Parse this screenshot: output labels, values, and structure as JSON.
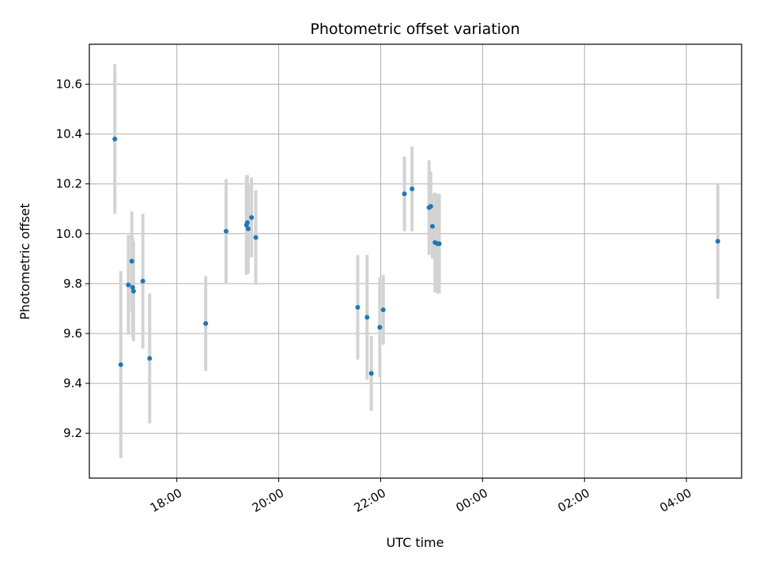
{
  "chart_data": {
    "type": "scatter",
    "title": "Photometric offset variation",
    "xlabel": "UTC time",
    "ylabel": "Photometric offset",
    "x_tick_labels": [
      "18:00",
      "20:00",
      "22:00",
      "00:00",
      "02:00",
      "04:00"
    ],
    "x_tick_times": [
      "18:00",
      "20:00",
      "22:00",
      "24:00",
      "26:00",
      "28:00"
    ],
    "y_ticks": [
      9.2,
      9.4,
      9.6,
      9.8,
      10.0,
      10.2,
      10.4,
      10.6
    ],
    "y_tick_labels": [
      "9.2",
      "9.4",
      "9.6",
      "9.8",
      "10.0",
      "10.2",
      "10.4",
      "10.6"
    ],
    "xlim": [
      "16:17",
      "29:05"
    ],
    "ylim": [
      9.02,
      10.76
    ],
    "grid": true,
    "colors": {
      "point": "#1f77b4",
      "errorbar": "#d3d3d3",
      "grid": "#b0b0b0"
    },
    "points": [
      {
        "t": "16:47",
        "y": 10.38,
        "err": 0.3
      },
      {
        "t": "16:54",
        "y": 9.475,
        "err": 0.375
      },
      {
        "t": "17:03",
        "y": 9.795,
        "err": 0.2
      },
      {
        "t": "17:07",
        "y": 9.89,
        "err": 0.2
      },
      {
        "t": "17:08",
        "y": 9.785,
        "err": 0.2
      },
      {
        "t": "17:09",
        "y": 9.77,
        "err": 0.2
      },
      {
        "t": "17:20",
        "y": 9.81,
        "err": 0.27
      },
      {
        "t": "17:28",
        "y": 9.5,
        "err": 0.26
      },
      {
        "t": "18:34",
        "y": 9.64,
        "err": 0.19
      },
      {
        "t": "18:58",
        "y": 10.01,
        "err": 0.21
      },
      {
        "t": "19:22",
        "y": 10.035,
        "err": 0.2
      },
      {
        "t": "19:23",
        "y": 10.045,
        "err": 0.19
      },
      {
        "t": "19:24",
        "y": 10.02,
        "err": 0.18
      },
      {
        "t": "19:28",
        "y": 10.065,
        "err": 0.16
      },
      {
        "t": "19:33",
        "y": 9.985,
        "err": 0.19
      },
      {
        "t": "21:33",
        "y": 9.705,
        "err": 0.21
      },
      {
        "t": "21:44",
        "y": 9.665,
        "err": 0.25
      },
      {
        "t": "21:49",
        "y": 9.44,
        "err": 0.15
      },
      {
        "t": "21:59",
        "y": 9.625,
        "err": 0.2
      },
      {
        "t": "22:03",
        "y": 9.695,
        "err": 0.14
      },
      {
        "t": "22:28",
        "y": 10.16,
        "err": 0.15
      },
      {
        "t": "22:37",
        "y": 10.18,
        "err": 0.17
      },
      {
        "t": "22:57",
        "y": 10.105,
        "err": 0.19
      },
      {
        "t": "22:59",
        "y": 10.11,
        "err": 0.14
      },
      {
        "t": "23:01",
        "y": 10.03,
        "err": 0.13
      },
      {
        "t": "23:04",
        "y": 9.965,
        "err": 0.2
      },
      {
        "t": "23:07",
        "y": 9.96,
        "err": 0.2
      },
      {
        "t": "23:09",
        "y": 9.96,
        "err": 0.2
      },
      {
        "t": "28:37",
        "y": 9.97,
        "err": 0.23
      }
    ]
  }
}
